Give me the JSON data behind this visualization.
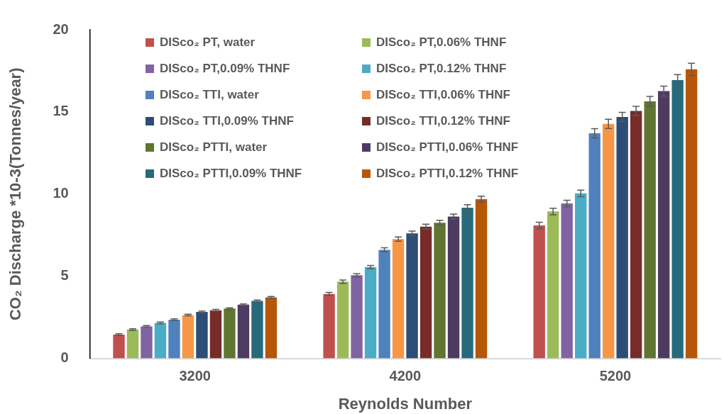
{
  "chart_data": {
    "type": "bar",
    "xlabel": "Reynolds Number",
    "ylabel": "CO₂ Discharge *10-3(Tonnes/year)",
    "categories": [
      "3200",
      "4200",
      "5200"
    ],
    "ylim": [
      0,
      20
    ],
    "yticks": [
      0,
      5,
      10,
      15,
      20
    ],
    "grid": false,
    "legend": "top left",
    "series": [
      {
        "name": "DISco₂ PT, water",
        "color": "#c0504d",
        "values": [
          1.45,
          3.92,
          8.09
        ],
        "errors": [
          0.05,
          0.1,
          0.2
        ]
      },
      {
        "name": "DISco₂ PT,0.06% THNF",
        "color": "#9bbb59",
        "values": [
          1.76,
          4.67,
          8.94
        ],
        "errors": [
          0.05,
          0.1,
          0.2
        ]
      },
      {
        "name": "DISco₂ PT,0.09% THNF",
        "color": "#8064a2",
        "values": [
          1.95,
          5.06,
          9.43
        ],
        "errors": [
          0.05,
          0.1,
          0.2
        ]
      },
      {
        "name": "DISco₂ PT,0.12% THNF",
        "color": "#4bacc6",
        "values": [
          2.16,
          5.56,
          10.04
        ],
        "errors": [
          0.05,
          0.1,
          0.2
        ]
      },
      {
        "name": "DISco₂ TTI, water",
        "color": "#4f81bd",
        "values": [
          2.36,
          6.61,
          13.7
        ],
        "errors": [
          0.05,
          0.12,
          0.28
        ]
      },
      {
        "name": "DISco₂ TTI,0.06% THNF",
        "color": "#f79646",
        "values": [
          2.64,
          7.26,
          14.27
        ],
        "errors": [
          0.05,
          0.13,
          0.28
        ]
      },
      {
        "name": "DISco₂ TTI,0.09% THNF",
        "color": "#2c4d75",
        "values": [
          2.83,
          7.61,
          14.69
        ],
        "errors": [
          0.05,
          0.14,
          0.28
        ]
      },
      {
        "name": "DISco₂ TTI,0.12% THNF",
        "color": "#772c2a",
        "values": [
          2.93,
          8.02,
          15.06
        ],
        "errors": [
          0.05,
          0.15,
          0.28
        ]
      },
      {
        "name": "DISco₂ PTTI, water",
        "color": "#5f7530",
        "values": [
          3.03,
          8.26,
          15.64
        ],
        "errors": [
          0.05,
          0.15,
          0.3
        ]
      },
      {
        "name": "DISco₂ PTTI,0.06% THNF",
        "color": "#4d3b62",
        "values": [
          3.27,
          8.63,
          16.27
        ],
        "errors": [
          0.05,
          0.15,
          0.3
        ]
      },
      {
        "name": "DISco₂ PTTI,0.09% THNF",
        "color": "#276a7c",
        "values": [
          3.5,
          9.17,
          16.94
        ],
        "errors": [
          0.05,
          0.18,
          0.33
        ]
      },
      {
        "name": "DISco₂ PTTI,0.12% THNF",
        "color": "#b65708",
        "values": [
          3.71,
          9.69,
          17.59
        ],
        "errors": [
          0.06,
          0.18,
          0.37
        ]
      }
    ]
  }
}
